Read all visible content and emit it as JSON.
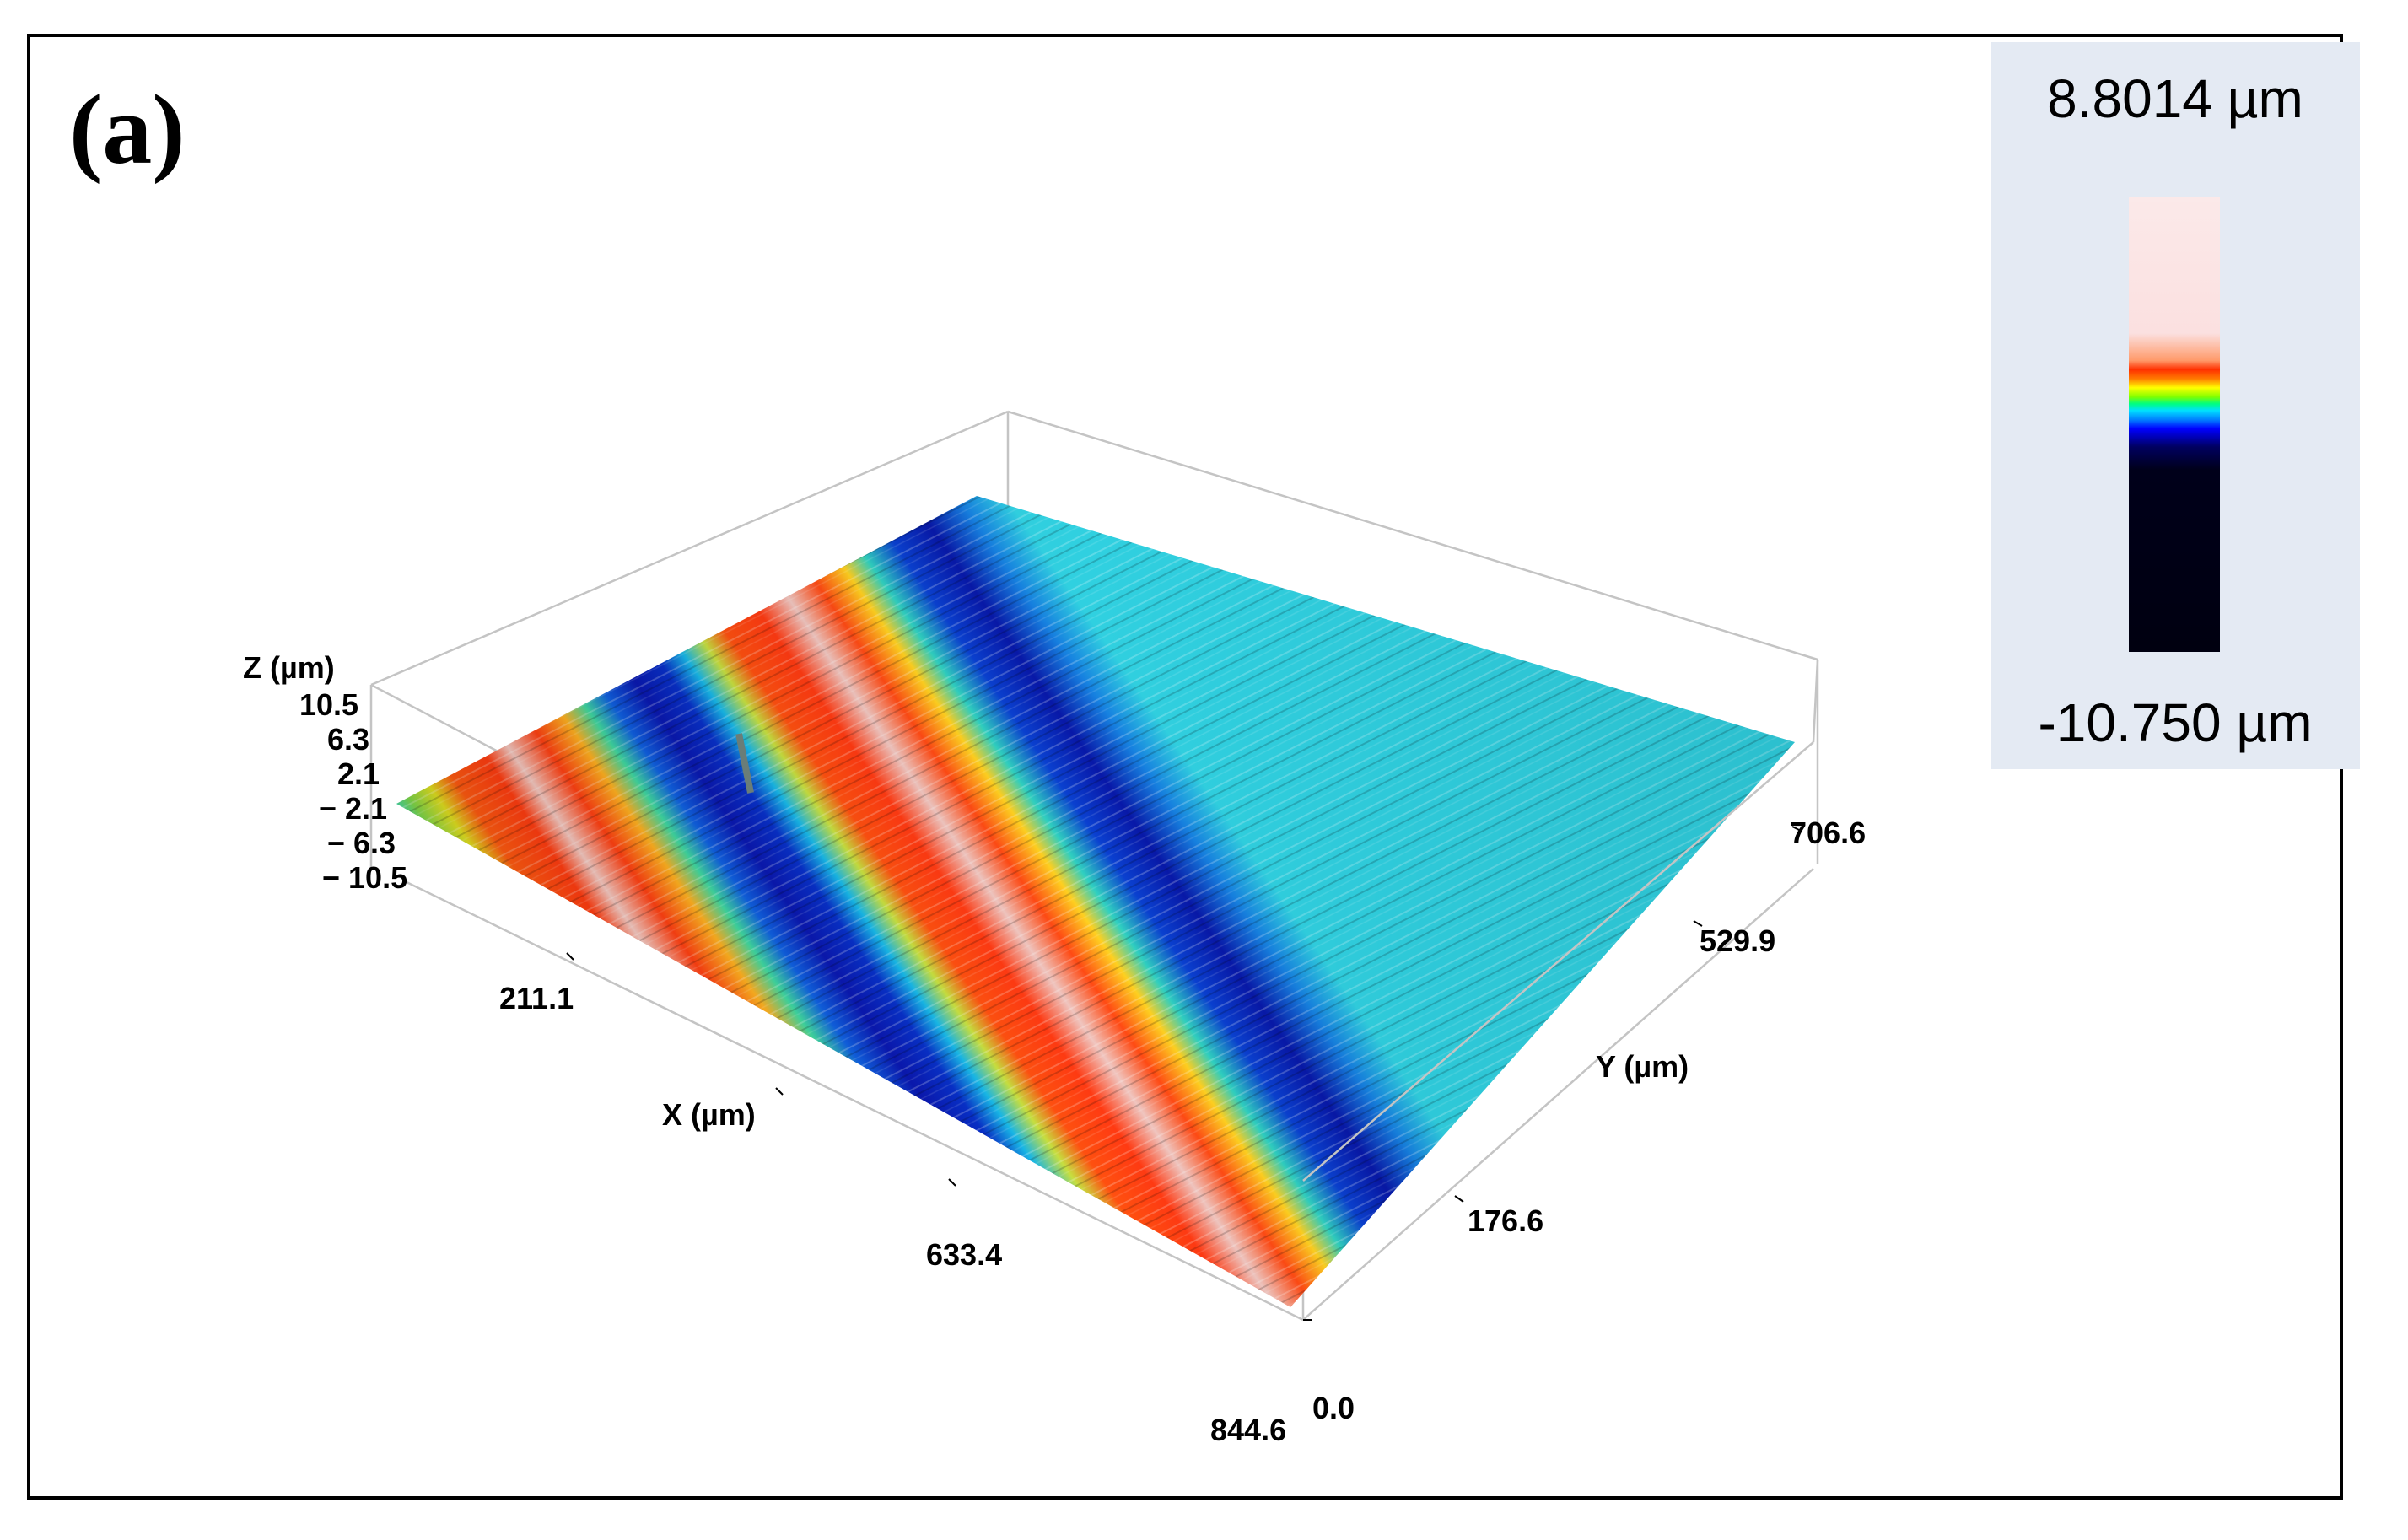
{
  "figure": {
    "panel_label": "(a)"
  },
  "legend": {
    "max_label": "8.8014 µm",
    "min_label": "-10.750 µm",
    "colormap": [
      "#fbe9e9",
      "#ff3000",
      "#ffff00",
      "#00ff80",
      "#0080ff",
      "#0000ff",
      "#000010"
    ]
  },
  "axes": {
    "z": {
      "label": "Z (µm)",
      "ticks": [
        "10.5",
        "6.3",
        "2.1",
        "− 2.1",
        "− 6.3",
        "− 10.5"
      ]
    },
    "x": {
      "label": "X (µm)",
      "ticks": [
        "211.1",
        "633.4",
        "844.6"
      ]
    },
    "y": {
      "label": "Y (µm)",
      "ticks": [
        "0.0",
        "176.6",
        "529.9",
        "706.6"
      ]
    }
  }
}
